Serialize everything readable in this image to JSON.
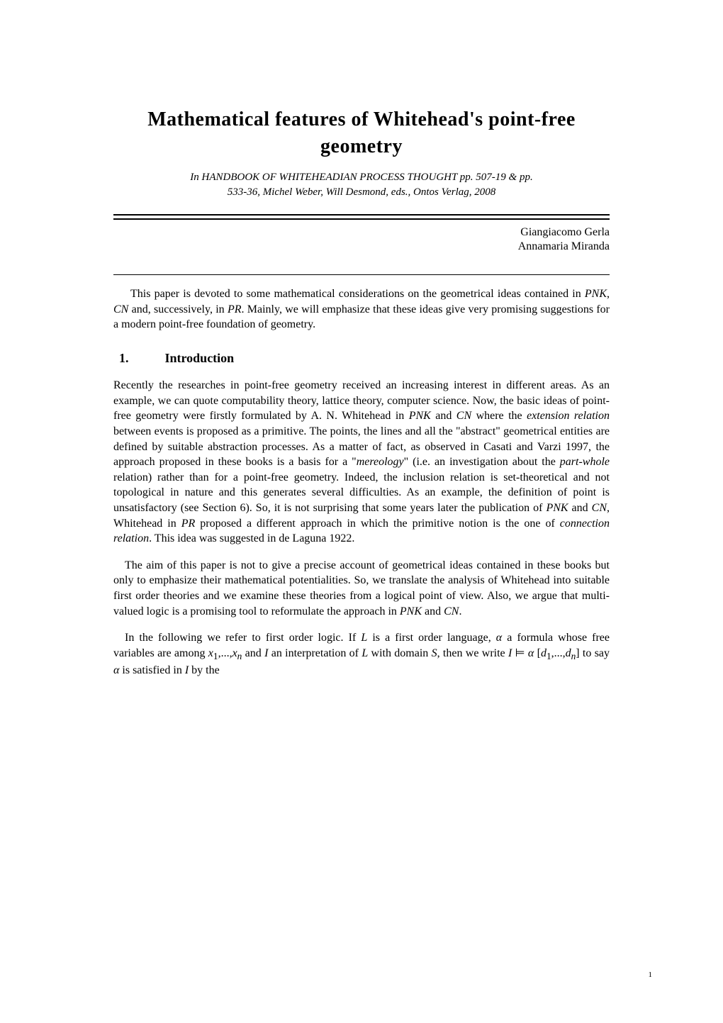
{
  "title": "Mathematical features of Whitehead's point-free geometry",
  "citation_line1": "In HANDBOOK OF WHITEHEADIAN PROCESS THOUGHT pp. 507-19 & pp.",
  "citation_line2": "533-36, Michel Weber, Will Desmond, eds., Ontos Verlag, 2008",
  "author1": "Giangiacomo Gerla",
  "author2": "Annamaria Miranda",
  "intro_para": "This paper is devoted to some mathematical considerations on the geometrical ideas contained in PNK, CN and, successively, in PR. Mainly, we will emphasize that these ideas give very promising suggestions for a modern point-free foundation of geometry.",
  "section_number": "1.",
  "section_title": "Introduction",
  "page_number": "1",
  "colors": {
    "text": "#000000",
    "background": "#ffffff",
    "rule": "#000000"
  },
  "typography": {
    "title_fontsize": 28,
    "title_weight": "bold",
    "body_fontsize": 16,
    "citation_fontsize": 15,
    "heading_fontsize": 18,
    "pagenum_fontsize": 11,
    "font_family": "serif"
  }
}
